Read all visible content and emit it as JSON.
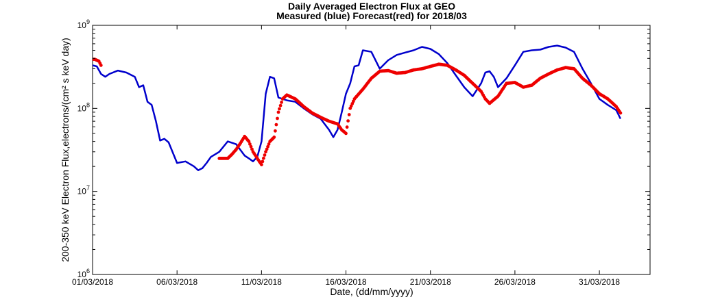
{
  "chart_data": {
    "type": "line",
    "title": [
      "Daily Averaged Electron Flux at GEO",
      "Measured (blue) Forecast(red) for 2018/03"
    ],
    "xlabel": "Date, (dd/mm/yyyy)",
    "ylabel": "200-350 keV Electron Flux,electrons/(cm² s keV day)",
    "y_scale": "log",
    "ylim": [
      1000000,
      1000000000
    ],
    "xlim": [
      "2018-03-01",
      "2018-04-03"
    ],
    "x_ticks": [
      {
        "date": "2018-03-01",
        "label": "01/03/2018"
      },
      {
        "date": "2018-03-06",
        "label": "06/03/2018"
      },
      {
        "date": "2018-03-11",
        "label": "11/03/2018"
      },
      {
        "date": "2018-03-16",
        "label": "16/03/2018"
      },
      {
        "date": "2018-03-21",
        "label": "21/03/2018"
      },
      {
        "date": "2018-03-26",
        "label": "26/03/2018"
      },
      {
        "date": "2018-03-31",
        "label": "31/03/2018"
      }
    ],
    "y_ticks": [
      {
        "value": 1000000,
        "base": "10",
        "exp": "6"
      },
      {
        "value": 10000000,
        "base": "10",
        "exp": "7"
      },
      {
        "value": 100000000,
        "base": "10",
        "exp": "8"
      },
      {
        "value": 1000000000,
        "base": "10",
        "exp": "9"
      }
    ],
    "grid": false,
    "series": [
      {
        "style": "line",
        "color": "#0000cc",
        "x": [
          "2018-03-01 00:00",
          "2018-03-01 06:00",
          "2018-03-01 12:00",
          "2018-03-01 18:00",
          "2018-03-02 00:00",
          "2018-03-02 12:00",
          "2018-03-03 00:00",
          "2018-03-03 12:00",
          "2018-03-03 18:00",
          "2018-03-04 00:00",
          "2018-03-04 06:00",
          "2018-03-04 12:00",
          "2018-03-04 18:00",
          "2018-03-05 00:00",
          "2018-03-05 06:00",
          "2018-03-05 12:00",
          "2018-03-06 00:00",
          "2018-03-06 12:00",
          "2018-03-07 00:00",
          "2018-03-07 06:00",
          "2018-03-07 12:00",
          "2018-03-07 18:00",
          "2018-03-08 00:00",
          "2018-03-08 12:00",
          "2018-03-09 00:00",
          "2018-03-09 12:00",
          "2018-03-10 00:00",
          "2018-03-10 06:00",
          "2018-03-10 12:00",
          "2018-03-10 18:00",
          "2018-03-11 00:00",
          "2018-03-11 06:00",
          "2018-03-11 12:00",
          "2018-03-11 18:00",
          "2018-03-12 00:00",
          "2018-03-12 12:00",
          "2018-03-13 00:00",
          "2018-03-13 12:00",
          "2018-03-14 00:00",
          "2018-03-14 12:00",
          "2018-03-15 00:00",
          "2018-03-15 06:00",
          "2018-03-15 12:00",
          "2018-03-15 18:00",
          "2018-03-16 00:00",
          "2018-03-16 06:00",
          "2018-03-16 12:00",
          "2018-03-16 18:00",
          "2018-03-17 00:00",
          "2018-03-17 12:00",
          "2018-03-18 00:00",
          "2018-03-18 12:00",
          "2018-03-19 00:00",
          "2018-03-19 12:00",
          "2018-03-20 00:00",
          "2018-03-20 12:00",
          "2018-03-21 00:00",
          "2018-03-21 12:00",
          "2018-03-22 00:00",
          "2018-03-22 12:00",
          "2018-03-23 00:00",
          "2018-03-23 12:00",
          "2018-03-24 00:00",
          "2018-03-24 06:00",
          "2018-03-24 12:00",
          "2018-03-24 18:00",
          "2018-03-25 00:00",
          "2018-03-25 12:00",
          "2018-03-26 00:00",
          "2018-03-26 12:00",
          "2018-03-27 00:00",
          "2018-03-27 12:00",
          "2018-03-28 00:00",
          "2018-03-28 12:00",
          "2018-03-29 00:00",
          "2018-03-29 12:00",
          "2018-03-30 00:00",
          "2018-03-30 12:00",
          "2018-03-31 00:00",
          "2018-03-31 12:00",
          "2018-04-01 00:00",
          "2018-04-01 06:00"
        ],
        "values": [
          330000000,
          320000000,
          260000000,
          240000000,
          260000000,
          285000000,
          270000000,
          240000000,
          180000000,
          190000000,
          120000000,
          110000000,
          70000000,
          41000000,
          43000000,
          39000000,
          22000000,
          23000000,
          20000000,
          18000000,
          19000000,
          22000000,
          26000000,
          30000000,
          40000000,
          37000000,
          27000000,
          25000000,
          23000000,
          26000000,
          40000000,
          150000000,
          240000000,
          230000000,
          135000000,
          125000000,
          120000000,
          100000000,
          85000000,
          75000000,
          55000000,
          45000000,
          55000000,
          90000000,
          150000000,
          200000000,
          320000000,
          330000000,
          500000000,
          480000000,
          300000000,
          380000000,
          440000000,
          470000000,
          500000000,
          550000000,
          520000000,
          450000000,
          350000000,
          250000000,
          180000000,
          140000000,
          200000000,
          270000000,
          280000000,
          240000000,
          180000000,
          230000000,
          330000000,
          480000000,
          500000000,
          510000000,
          550000000,
          570000000,
          540000000,
          480000000,
          300000000,
          200000000,
          130000000,
          110000000,
          95000000,
          75000000
        ]
      },
      {
        "style": "markers",
        "color": "#ee0000",
        "segments": [
          {
            "x": [
              "2018-03-01 00:00",
              "2018-03-01 03:00",
              "2018-03-01 06:00",
              "2018-03-01 09:00",
              "2018-03-01 12:00"
            ],
            "values": [
              390000000,
              390000000,
              380000000,
              370000000,
              330000000
            ]
          },
          {
            "x": [
              "2018-03-08 12:00",
              "2018-03-09 00:00",
              "2018-03-09 06:00",
              "2018-03-09 12:00",
              "2018-03-09 18:00",
              "2018-03-10 00:00",
              "2018-03-10 06:00",
              "2018-03-10 12:00",
              "2018-03-10 18:00",
              "2018-03-11 00:00",
              "2018-03-11 06:00",
              "2018-03-11 12:00",
              "2018-03-11 18:00",
              "2018-03-12 00:00",
              "2018-03-12 06:00",
              "2018-03-12 12:00",
              "2018-03-13 00:00",
              "2018-03-13 12:00",
              "2018-03-14 00:00",
              "2018-03-14 12:00",
              "2018-03-15 00:00",
              "2018-03-15 12:00",
              "2018-03-15 18:00",
              "2018-03-16 00:00",
              "2018-03-16 06:00",
              "2018-03-16 12:00",
              "2018-03-17 00:00",
              "2018-03-17 12:00",
              "2018-03-18 00:00",
              "2018-03-18 12:00",
              "2018-03-19 00:00",
              "2018-03-19 12:00",
              "2018-03-20 00:00",
              "2018-03-20 12:00",
              "2018-03-21 00:00",
              "2018-03-21 12:00",
              "2018-03-22 00:00",
              "2018-03-22 12:00",
              "2018-03-23 00:00",
              "2018-03-23 12:00",
              "2018-03-24 00:00",
              "2018-03-24 06:00",
              "2018-03-24 12:00",
              "2018-03-25 00:00",
              "2018-03-25 12:00",
              "2018-03-26 00:00",
              "2018-03-26 12:00",
              "2018-03-27 00:00",
              "2018-03-27 12:00",
              "2018-03-28 00:00",
              "2018-03-28 12:00",
              "2018-03-29 00:00",
              "2018-03-29 12:00",
              "2018-03-30 00:00",
              "2018-03-30 12:00",
              "2018-03-31 00:00",
              "2018-03-31 12:00",
              "2018-04-01 00:00",
              "2018-04-01 06:00"
            ],
            "values": [
              25000000,
              25000000,
              28000000,
              32000000,
              38000000,
              46000000,
              40000000,
              30000000,
              25000000,
              21000000,
              30000000,
              40000000,
              45000000,
              90000000,
              130000000,
              145000000,
              130000000,
              105000000,
              88000000,
              78000000,
              70000000,
              65000000,
              55000000,
              50000000,
              100000000,
              130000000,
              170000000,
              230000000,
              280000000,
              285000000,
              265000000,
              270000000,
              290000000,
              300000000,
              320000000,
              340000000,
              330000000,
              290000000,
              250000000,
              200000000,
              160000000,
              130000000,
              115000000,
              140000000,
              200000000,
              205000000,
              180000000,
              190000000,
              230000000,
              260000000,
              290000000,
              310000000,
              300000000,
              230000000,
              190000000,
              150000000,
              130000000,
              105000000,
              88000000
            ]
          }
        ]
      }
    ]
  }
}
